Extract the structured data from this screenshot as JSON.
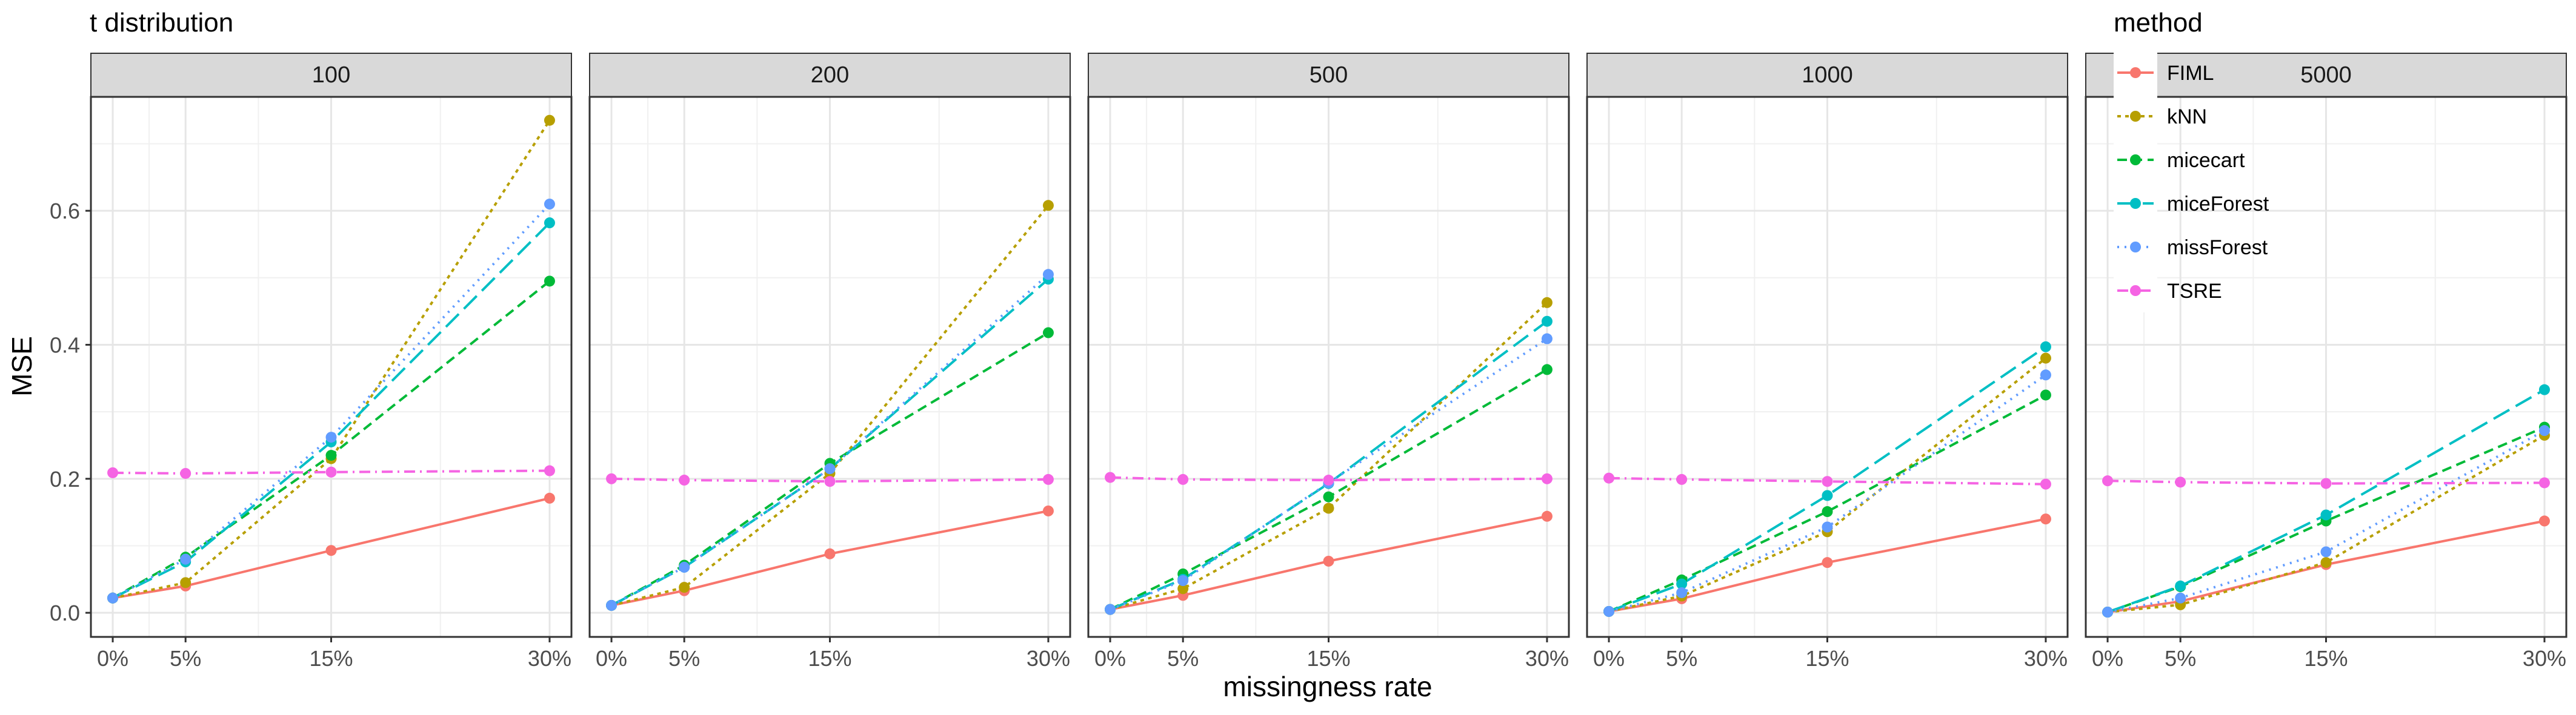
{
  "title": "t distribution",
  "xlabel": "missingness rate",
  "ylabel": "MSE",
  "legend": {
    "title": "method",
    "placement": "top-right"
  },
  "colors": {
    "FIML": "#F8766D",
    "kNN": "#B79F00",
    "micecart": "#00BA38",
    "miceForest": "#00BFC4",
    "missForest": "#619CFF",
    "TSRE": "#F564E3"
  },
  "chart_data": {
    "type": "line",
    "title": "t distribution",
    "xlabel": "missingness rate",
    "ylabel": "MSE",
    "x": [
      0,
      5,
      15,
      30
    ],
    "x_tick_labels": [
      "0%",
      "5%",
      "15%",
      "30%"
    ],
    "xlim": [
      -1.5,
      31.5
    ],
    "ylim": [
      -0.036,
      0.77
    ],
    "y_ticks": [
      0.0,
      0.2,
      0.4,
      0.6
    ],
    "y_tick_labels": [
      "0.0",
      "0.2",
      "0.4",
      "0.6"
    ],
    "grid": true,
    "legend_placement": "top-right",
    "facets": [
      {
        "label": "100",
        "series": [
          {
            "name": "FIML",
            "values": [
              0.022,
              0.04,
              0.093,
              0.171
            ]
          },
          {
            "name": "kNN",
            "values": [
              0.022,
              0.045,
              0.23,
              0.735
            ]
          },
          {
            "name": "micecart",
            "values": [
              0.022,
              0.083,
              0.235,
              0.495
            ]
          },
          {
            "name": "miceForest",
            "values": [
              0.022,
              0.076,
              0.255,
              0.582
            ]
          },
          {
            "name": "missForest",
            "values": [
              0.022,
              0.08,
              0.262,
              0.61
            ]
          },
          {
            "name": "TSRE",
            "values": [
              0.209,
              0.208,
              0.21,
              0.212
            ]
          }
        ]
      },
      {
        "label": "200",
        "series": [
          {
            "name": "FIML",
            "values": [
              0.011,
              0.033,
              0.088,
              0.152
            ]
          },
          {
            "name": "kNN",
            "values": [
              0.011,
              0.038,
              0.208,
              0.608
            ]
          },
          {
            "name": "micecart",
            "values": [
              0.011,
              0.071,
              0.223,
              0.418
            ]
          },
          {
            "name": "miceForest",
            "values": [
              0.011,
              0.068,
              0.215,
              0.498
            ]
          },
          {
            "name": "missForest",
            "values": [
              0.011,
              0.068,
              0.215,
              0.505
            ]
          },
          {
            "name": "TSRE",
            "values": [
              0.2,
              0.198,
              0.196,
              0.199
            ]
          }
        ]
      },
      {
        "label": "500",
        "series": [
          {
            "name": "FIML",
            "values": [
              0.005,
              0.026,
              0.077,
              0.144
            ]
          },
          {
            "name": "kNN",
            "values": [
              0.005,
              0.036,
              0.156,
              0.463
            ]
          },
          {
            "name": "micecart",
            "values": [
              0.005,
              0.058,
              0.173,
              0.363
            ]
          },
          {
            "name": "miceForest",
            "values": [
              0.005,
              0.05,
              0.193,
              0.435
            ]
          },
          {
            "name": "missForest",
            "values": [
              0.005,
              0.048,
              0.194,
              0.409
            ]
          },
          {
            "name": "TSRE",
            "values": [
              0.202,
              0.199,
              0.198,
              0.2
            ]
          }
        ]
      },
      {
        "label": "1000",
        "series": [
          {
            "name": "FIML",
            "values": [
              0.002,
              0.021,
              0.075,
              0.14
            ]
          },
          {
            "name": "kNN",
            "values": [
              0.002,
              0.025,
              0.121,
              0.38
            ]
          },
          {
            "name": "micecart",
            "values": [
              0.002,
              0.049,
              0.151,
              0.325
            ]
          },
          {
            "name": "miceForest",
            "values": [
              0.002,
              0.043,
              0.175,
              0.397
            ]
          },
          {
            "name": "missForest",
            "values": [
              0.002,
              0.03,
              0.128,
              0.355
            ]
          },
          {
            "name": "TSRE",
            "values": [
              0.201,
              0.199,
              0.196,
              0.192
            ]
          }
        ]
      },
      {
        "label": "5000",
        "series": [
          {
            "name": "FIML",
            "values": [
              0.001,
              0.017,
              0.072,
              0.137
            ]
          },
          {
            "name": "kNN",
            "values": [
              0.001,
              0.012,
              0.075,
              0.265
            ]
          },
          {
            "name": "micecart",
            "values": [
              0.001,
              0.039,
              0.137,
              0.277
            ]
          },
          {
            "name": "miceForest",
            "values": [
              0.001,
              0.04,
              0.146,
              0.333
            ]
          },
          {
            "name": "missForest",
            "values": [
              0.001,
              0.022,
              0.091,
              0.272
            ]
          },
          {
            "name": "TSRE",
            "values": [
              0.197,
              0.195,
              0.193,
              0.194
            ]
          }
        ]
      }
    ]
  }
}
